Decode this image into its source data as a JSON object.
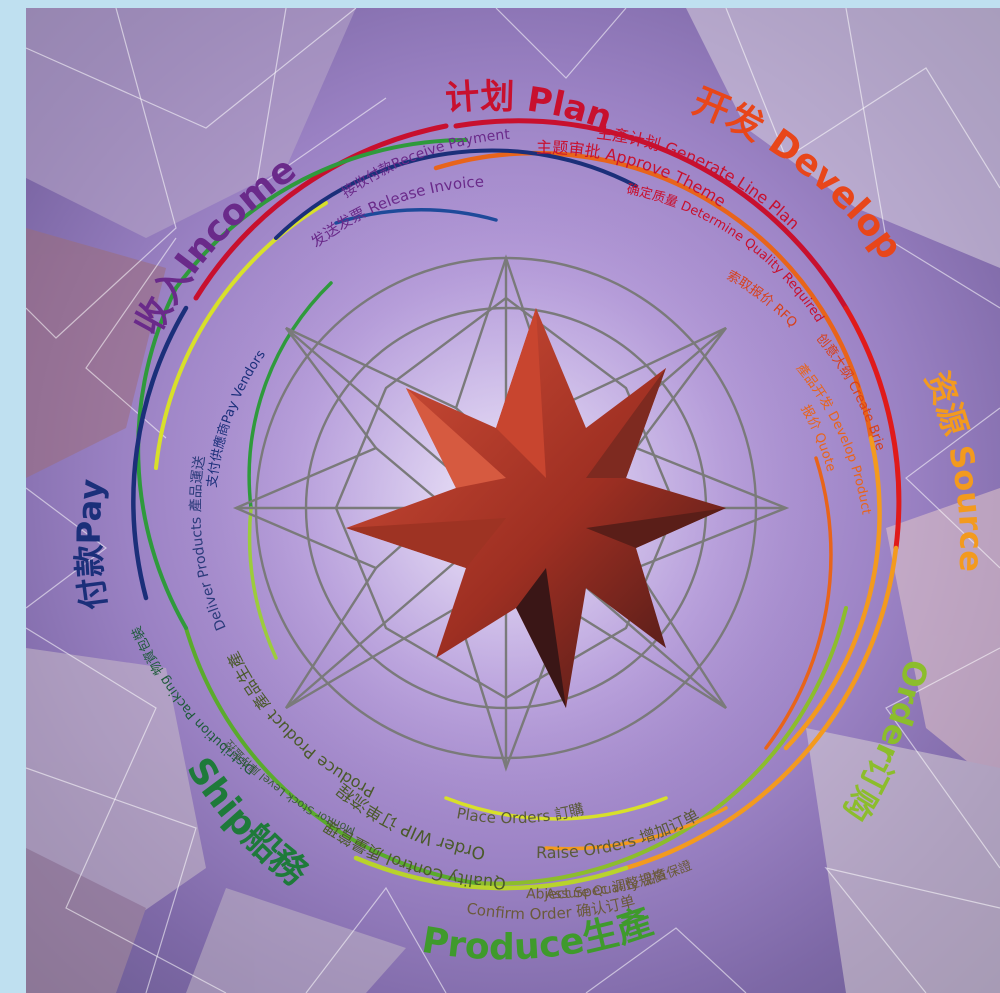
{
  "stages": {
    "plan": "计划 Plan",
    "develop": "开发 Develop",
    "source": "资源 Source",
    "order": "Order订购",
    "produce": "Produce生產",
    "ship": "Ship船務",
    "pay": "付款Pay",
    "income": "收入Income"
  },
  "steps": {
    "receive_payment": "接收付款Receive Payment",
    "release_invoice": "发送发票 Release Invoice",
    "generate_line_plan": "生產计划 Generate Line Plan",
    "approve_theme": "主题审批 Approve Theme",
    "determine_quality": "确定质量 Determine Quality Required",
    "request_rfq": "索取报价 RFQ",
    "create_briefs": "创意大纲 Create Briefs",
    "develop_product": "產品开发 Develop Product",
    "quote": "报价 Quote",
    "pay_vendors": "支付供應商Pay Vendors",
    "deliver_products": "Deliver Products 產品運送",
    "distribution_packing": "Distribution Packing 物資包裝",
    "monitor_stock": "Monitor Stock Level 庫存監控",
    "produce_product": "Produce Product 產品生產",
    "order_wip": "Order WIP 订单流程",
    "quality_control": "Quality Control 质量管理",
    "place_orders": "Place Orders 訂購",
    "raise_orders": "Raise Orders 增加订单",
    "assure_quality": "Assure Quality 品質保證",
    "adjust_spec": "Abject Spec 调整规格",
    "confirm_order": "Confirm Order 确认订单"
  },
  "colors": {
    "plan": "#c8102e",
    "develop": "#e8641a",
    "source": "#f39a1e",
    "order": "#8cbd2c",
    "produce": "#2f9a3c",
    "ship": "#1e7a3a",
    "pay": "#1b2f7a",
    "income": "#6a2a8a",
    "star": "#b83a2a"
  }
}
